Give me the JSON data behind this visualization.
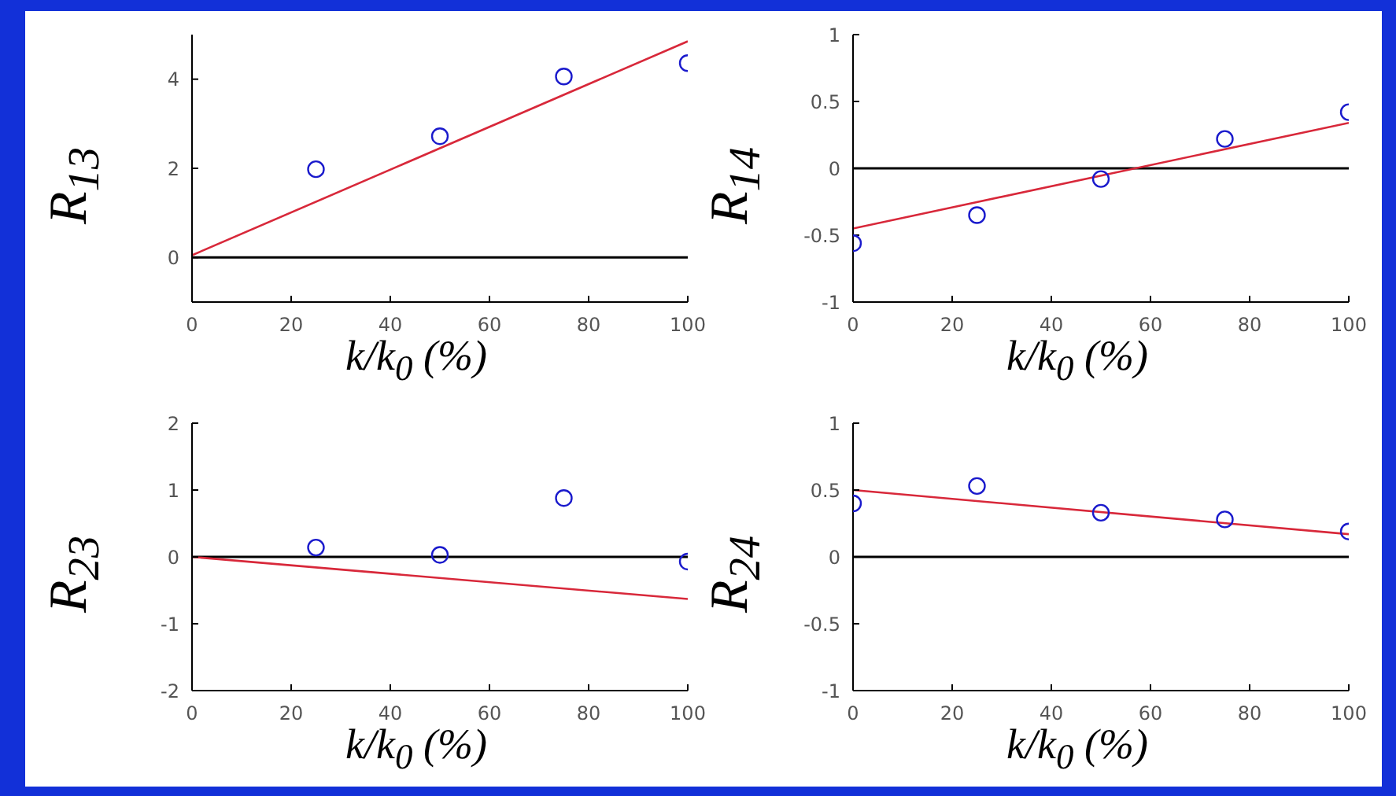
{
  "chart_data": [
    {
      "type": "scatter",
      "ylabel": "R$_{13}$",
      "xlabel": "k/k$_{0}$ (%)",
      "xlim": [
        0,
        100
      ],
      "xticks": [
        0,
        20,
        40,
        60,
        80,
        100
      ],
      "ylim": [
        -1,
        5
      ],
      "yticks": [
        0,
        2,
        4
      ],
      "grid": false,
      "series": [
        {
          "type": "scatter",
          "marker": "circle",
          "color": "#1a1acc",
          "x": [
            25,
            50,
            75,
            100
          ],
          "values": [
            1.98,
            2.72,
            4.06,
            4.36
          ]
        },
        {
          "type": "line",
          "color": "#d8283a",
          "x": [
            0,
            100
          ],
          "values": [
            0.05,
            4.85
          ]
        }
      ],
      "ref_lines": [
        {
          "axis": "y",
          "value": 0,
          "color": "#000000"
        }
      ]
    },
    {
      "type": "scatter",
      "ylabel": "R$_{14}$",
      "xlabel": "k/k$_{0}$ (%)",
      "xlim": [
        0,
        100
      ],
      "xticks": [
        0,
        20,
        40,
        60,
        80,
        100
      ],
      "ylim": [
        -1,
        1
      ],
      "yticks": [
        -1,
        -0.5,
        0,
        0.5,
        1
      ],
      "grid": false,
      "series": [
        {
          "type": "scatter",
          "marker": "circle",
          "color": "#1a1acc",
          "x": [
            0,
            25,
            50,
            75,
            100
          ],
          "values": [
            -0.56,
            -0.35,
            -0.08,
            0.22,
            0.42
          ]
        },
        {
          "type": "line",
          "color": "#d8283a",
          "x": [
            0,
            100
          ],
          "values": [
            -0.45,
            0.34
          ]
        }
      ],
      "ref_lines": [
        {
          "axis": "y",
          "value": 0,
          "color": "#000000"
        }
      ]
    },
    {
      "type": "scatter",
      "ylabel": "R$_{23}$",
      "xlabel": "k/k$_{0}$ (%)",
      "xlim": [
        0,
        100
      ],
      "xticks": [
        0,
        20,
        40,
        60,
        80,
        100
      ],
      "ylim": [
        -2,
        2
      ],
      "yticks": [
        -2,
        -1,
        0,
        1,
        2
      ],
      "grid": false,
      "series": [
        {
          "type": "scatter",
          "marker": "circle",
          "color": "#1a1acc",
          "x": [
            25,
            50,
            75,
            100
          ],
          "values": [
            0.14,
            0.03,
            0.88,
            -0.07
          ]
        },
        {
          "type": "line",
          "color": "#d8283a",
          "x": [
            0,
            100
          ],
          "values": [
            0,
            -0.63
          ]
        }
      ],
      "ref_lines": [
        {
          "axis": "y",
          "value": 0,
          "color": "#000000"
        }
      ]
    },
    {
      "type": "scatter",
      "ylabel": "R$_{24}$",
      "xlabel": "k/k$_{0}$ (%)",
      "xlim": [
        0,
        100
      ],
      "xticks": [
        0,
        20,
        40,
        60,
        80,
        100
      ],
      "ylim": [
        -1,
        1
      ],
      "yticks": [
        -1,
        -0.5,
        0,
        0.5,
        1
      ],
      "grid": false,
      "series": [
        {
          "type": "scatter",
          "marker": "circle",
          "color": "#1a1acc",
          "x": [
            0,
            25,
            50,
            75,
            100
          ],
          "values": [
            0.4,
            0.53,
            0.33,
            0.28,
            0.19
          ]
        },
        {
          "type": "line",
          "color": "#d8283a",
          "x": [
            0,
            100
          ],
          "values": [
            0.5,
            0.17
          ]
        }
      ],
      "ref_lines": [
        {
          "axis": "y",
          "value": 0,
          "color": "#000000"
        }
      ]
    }
  ]
}
